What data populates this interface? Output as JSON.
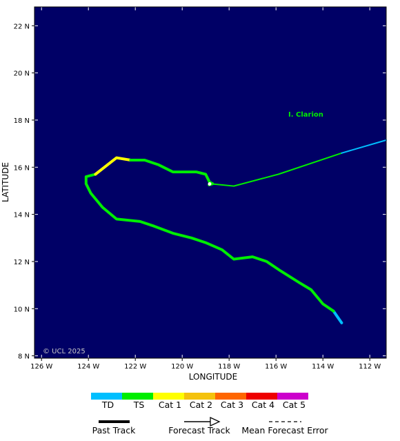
{
  "map": {
    "xlabel": "LONGITUDE",
    "ylabel": "LATITUDE",
    "lon_range": [
      -126.3,
      -111.3
    ],
    "lat_range": [
      7.9,
      22.8
    ],
    "lon_ticks": [
      {
        "value": -126,
        "label": "126 W"
      },
      {
        "value": -124,
        "label": "124 W"
      },
      {
        "value": -122,
        "label": "122 W"
      },
      {
        "value": -120,
        "label": "120 W"
      },
      {
        "value": -118,
        "label": "118 W"
      },
      {
        "value": -116,
        "label": "116 W"
      },
      {
        "value": -114,
        "label": "114 W"
      },
      {
        "value": -112,
        "label": "112 W"
      }
    ],
    "lat_ticks": [
      {
        "value": 8,
        "label": "8 N"
      },
      {
        "value": 10,
        "label": "10 N"
      },
      {
        "value": 12,
        "label": "12 N"
      },
      {
        "value": 14,
        "label": "14 N"
      },
      {
        "value": 16,
        "label": "16 N"
      },
      {
        "value": 18,
        "label": "18 N"
      },
      {
        "value": 20,
        "label": "20 N"
      },
      {
        "value": 22,
        "label": "22 N"
      }
    ],
    "background_color": "#000066",
    "island_label": "I. Clarion",
    "island_color": "#00ee00",
    "copyright": "© UCL 2025"
  },
  "chart_data": {
    "type": "line",
    "series": [
      {
        "kind": "past",
        "segments": [
          {
            "category": "TD",
            "points": [
              [
                -113.2,
                9.4
              ],
              [
                -113.55,
                9.9
              ]
            ]
          },
          {
            "category": "TS",
            "points": [
              [
                -113.55,
                9.9
              ],
              [
                -114.0,
                10.2
              ],
              [
                -114.5,
                10.8
              ],
              [
                -115.0,
                11.1
              ],
              [
                -115.8,
                11.6
              ],
              [
                -116.4,
                12.0
              ],
              [
                -117.0,
                12.2
              ],
              [
                -117.8,
                12.1
              ],
              [
                -118.3,
                12.5
              ],
              [
                -119.0,
                12.8
              ],
              [
                -119.6,
                13.0
              ],
              [
                -120.4,
                13.2
              ],
              [
                -121.2,
                13.5
              ],
              [
                -121.8,
                13.7
              ],
              [
                -122.8,
                13.8
              ],
              [
                -123.4,
                14.3
              ],
              [
                -123.9,
                14.9
              ],
              [
                -124.1,
                15.3
              ],
              [
                -124.1,
                15.6
              ],
              [
                -123.7,
                15.7
              ]
            ]
          },
          {
            "category": "Cat 1",
            "points": [
              [
                -123.7,
                15.7
              ],
              [
                -122.8,
                16.4
              ],
              [
                -122.2,
                16.3
              ]
            ]
          },
          {
            "category": "TS",
            "points": [
              [
                -122.2,
                16.3
              ],
              [
                -121.6,
                16.3
              ],
              [
                -121.0,
                16.1
              ],
              [
                -120.4,
                15.8
              ],
              [
                -119.4,
                15.8
              ],
              [
                -119.0,
                15.7
              ],
              [
                -118.8,
                15.3
              ],
              [
                -118.85,
                15.25
              ],
              [
                -118.7,
                15.3
              ],
              [
                -118.8,
                15.35
              ]
            ]
          }
        ]
      },
      {
        "kind": "forecast",
        "segments": [
          {
            "category": "TS",
            "points": [
              [
                -118.8,
                15.3
              ],
              [
                -117.8,
                15.2
              ],
              [
                -115.9,
                15.7
              ],
              [
                -113.2,
                16.6
              ]
            ]
          },
          {
            "category": "TD",
            "points": [
              [
                -113.2,
                16.6
              ],
              [
                -111.3,
                17.15
              ]
            ]
          }
        ]
      }
    ],
    "island_point": [
      -115.2,
      18.2
    ]
  },
  "legend": {
    "categories": [
      {
        "label": "TD",
        "color": "#00bfff"
      },
      {
        "label": "TS",
        "color": "#00ee00"
      },
      {
        "label": "Cat 1",
        "color": "#ffff00"
      },
      {
        "label": "Cat 2",
        "color": "#f4c20d"
      },
      {
        "label": "Cat 3",
        "color": "#ff6600"
      },
      {
        "label": "Cat 4",
        "color": "#ee0000"
      },
      {
        "label": "Cat 5",
        "color": "#cc00cc"
      }
    ],
    "past_track_label": "Past Track",
    "forecast_track_label": "Forecast Track",
    "error_label": "Mean Forecast Error"
  }
}
